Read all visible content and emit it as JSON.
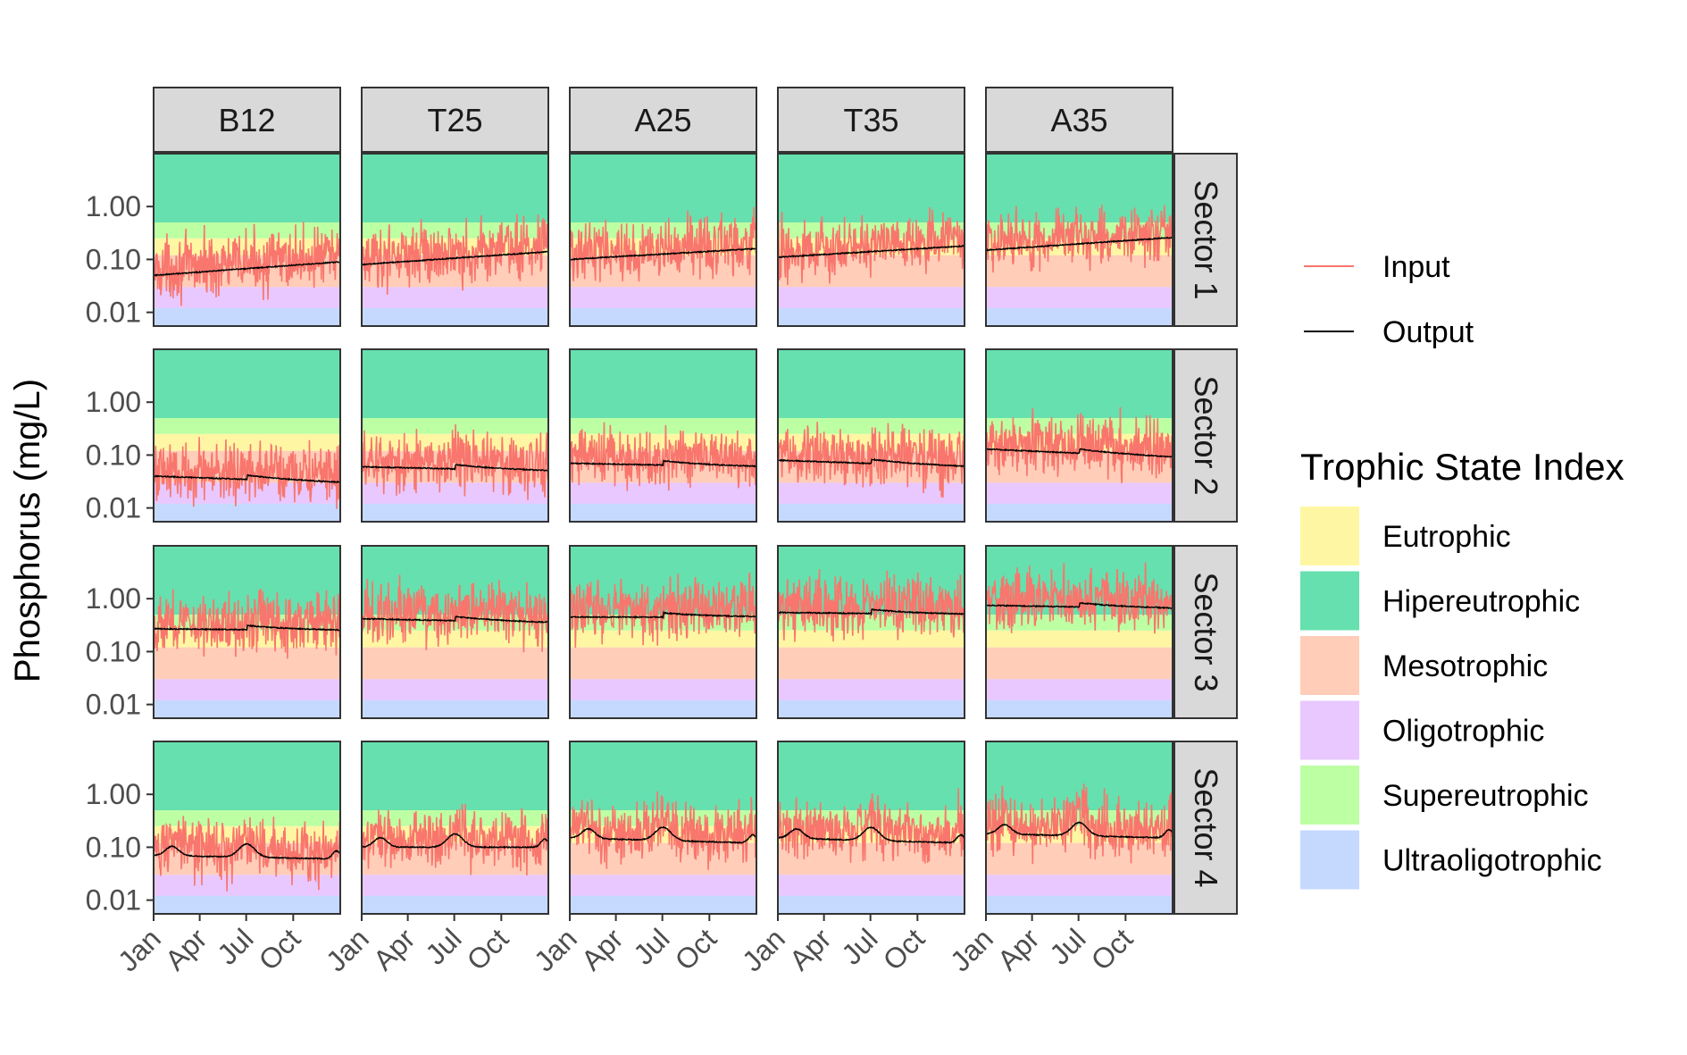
{
  "chart_data": {
    "type": "line",
    "facet_columns": [
      "B12",
      "T25",
      "A25",
      "T35",
      "A35"
    ],
    "facet_rows": [
      "Sector 1",
      "Sector 2",
      "Sector 3",
      "Sector 4"
    ],
    "ylabel": "Phosphorus (mg/L)",
    "xlabel": "",
    "y_scale": "log10",
    "ylim": [
      0.0055,
      10
    ],
    "y_ticks": [
      1.0,
      0.1,
      0.01
    ],
    "y_tick_labels": [
      "1.00",
      "0.10",
      "0.01"
    ],
    "x_ticks": [
      "Jan",
      "Apr",
      "Jul",
      "Oct"
    ],
    "x_range_months": [
      "Jan",
      "Dec"
    ],
    "grid": false,
    "legend_position": "right",
    "series_legend": [
      {
        "name": "Input",
        "color": "#F8766D"
      },
      {
        "name": "Output",
        "color": "#000000"
      }
    ],
    "background_legend_title": "Trophic State Index",
    "background_bands": [
      {
        "name": "Eutrophic",
        "color": "#FFF6A3",
        "range": [
          0.12,
          0.25
        ]
      },
      {
        "name": "Hipereutrophic",
        "color": "#66E0AE",
        "range": [
          0.5,
          10
        ]
      },
      {
        "name": "Mesotrophic",
        "color": "#FFCDB8",
        "range": [
          0.03,
          0.12
        ]
      },
      {
        "name": "Oligotrophic",
        "color": "#E8C8FF",
        "range": [
          0.012,
          0.03
        ]
      },
      {
        "name": "Supereutrophic",
        "color": "#BDFFA3",
        "range": [
          0.25,
          0.5
        ]
      },
      {
        "name": "Ultraoligotrophic",
        "color": "#C5D9FF",
        "range": [
          0.0055,
          0.012
        ]
      }
    ],
    "panels_output_approx": [
      {
        "row": "Sector 1",
        "col": "B12",
        "output_start": 0.05,
        "output_end": 0.09
      },
      {
        "row": "Sector 1",
        "col": "T25",
        "output_start": 0.08,
        "output_end": 0.14
      },
      {
        "row": "Sector 1",
        "col": "A25",
        "output_start": 0.1,
        "output_end": 0.16
      },
      {
        "row": "Sector 1",
        "col": "T35",
        "output_start": 0.11,
        "output_end": 0.18
      },
      {
        "row": "Sector 1",
        "col": "A35",
        "output_start": 0.15,
        "output_end": 0.26
      },
      {
        "row": "Sector 2",
        "col": "B12",
        "output_start": 0.04,
        "output_end": 0.03
      },
      {
        "row": "Sector 2",
        "col": "T25",
        "output_start": 0.06,
        "output_end": 0.05
      },
      {
        "row": "Sector 2",
        "col": "A25",
        "output_start": 0.07,
        "output_end": 0.06
      },
      {
        "row": "Sector 2",
        "col": "T35",
        "output_start": 0.08,
        "output_end": 0.06
      },
      {
        "row": "Sector 2",
        "col": "A35",
        "output_start": 0.13,
        "output_end": 0.09
      },
      {
        "row": "Sector 3",
        "col": "B12",
        "output_start": 0.27,
        "output_end": 0.25
      },
      {
        "row": "Sector 3",
        "col": "T25",
        "output_start": 0.42,
        "output_end": 0.35
      },
      {
        "row": "Sector 3",
        "col": "A25",
        "output_start": 0.45,
        "output_end": 0.45
      },
      {
        "row": "Sector 3",
        "col": "T35",
        "output_start": 0.55,
        "output_end": 0.5
      },
      {
        "row": "Sector 3",
        "col": "A35",
        "output_start": 0.75,
        "output_end": 0.65
      },
      {
        "row": "Sector 4",
        "col": "B12",
        "output_start": 0.07,
        "output_end": 0.06
      },
      {
        "row": "Sector 4",
        "col": "T25",
        "output_start": 0.1,
        "output_end": 0.1
      },
      {
        "row": "Sector 4",
        "col": "A25",
        "output_start": 0.15,
        "output_end": 0.12
      },
      {
        "row": "Sector 4",
        "col": "T35",
        "output_start": 0.15,
        "output_end": 0.12
      },
      {
        "row": "Sector 4",
        "col": "A35",
        "output_start": 0.18,
        "output_end": 0.15
      }
    ]
  }
}
